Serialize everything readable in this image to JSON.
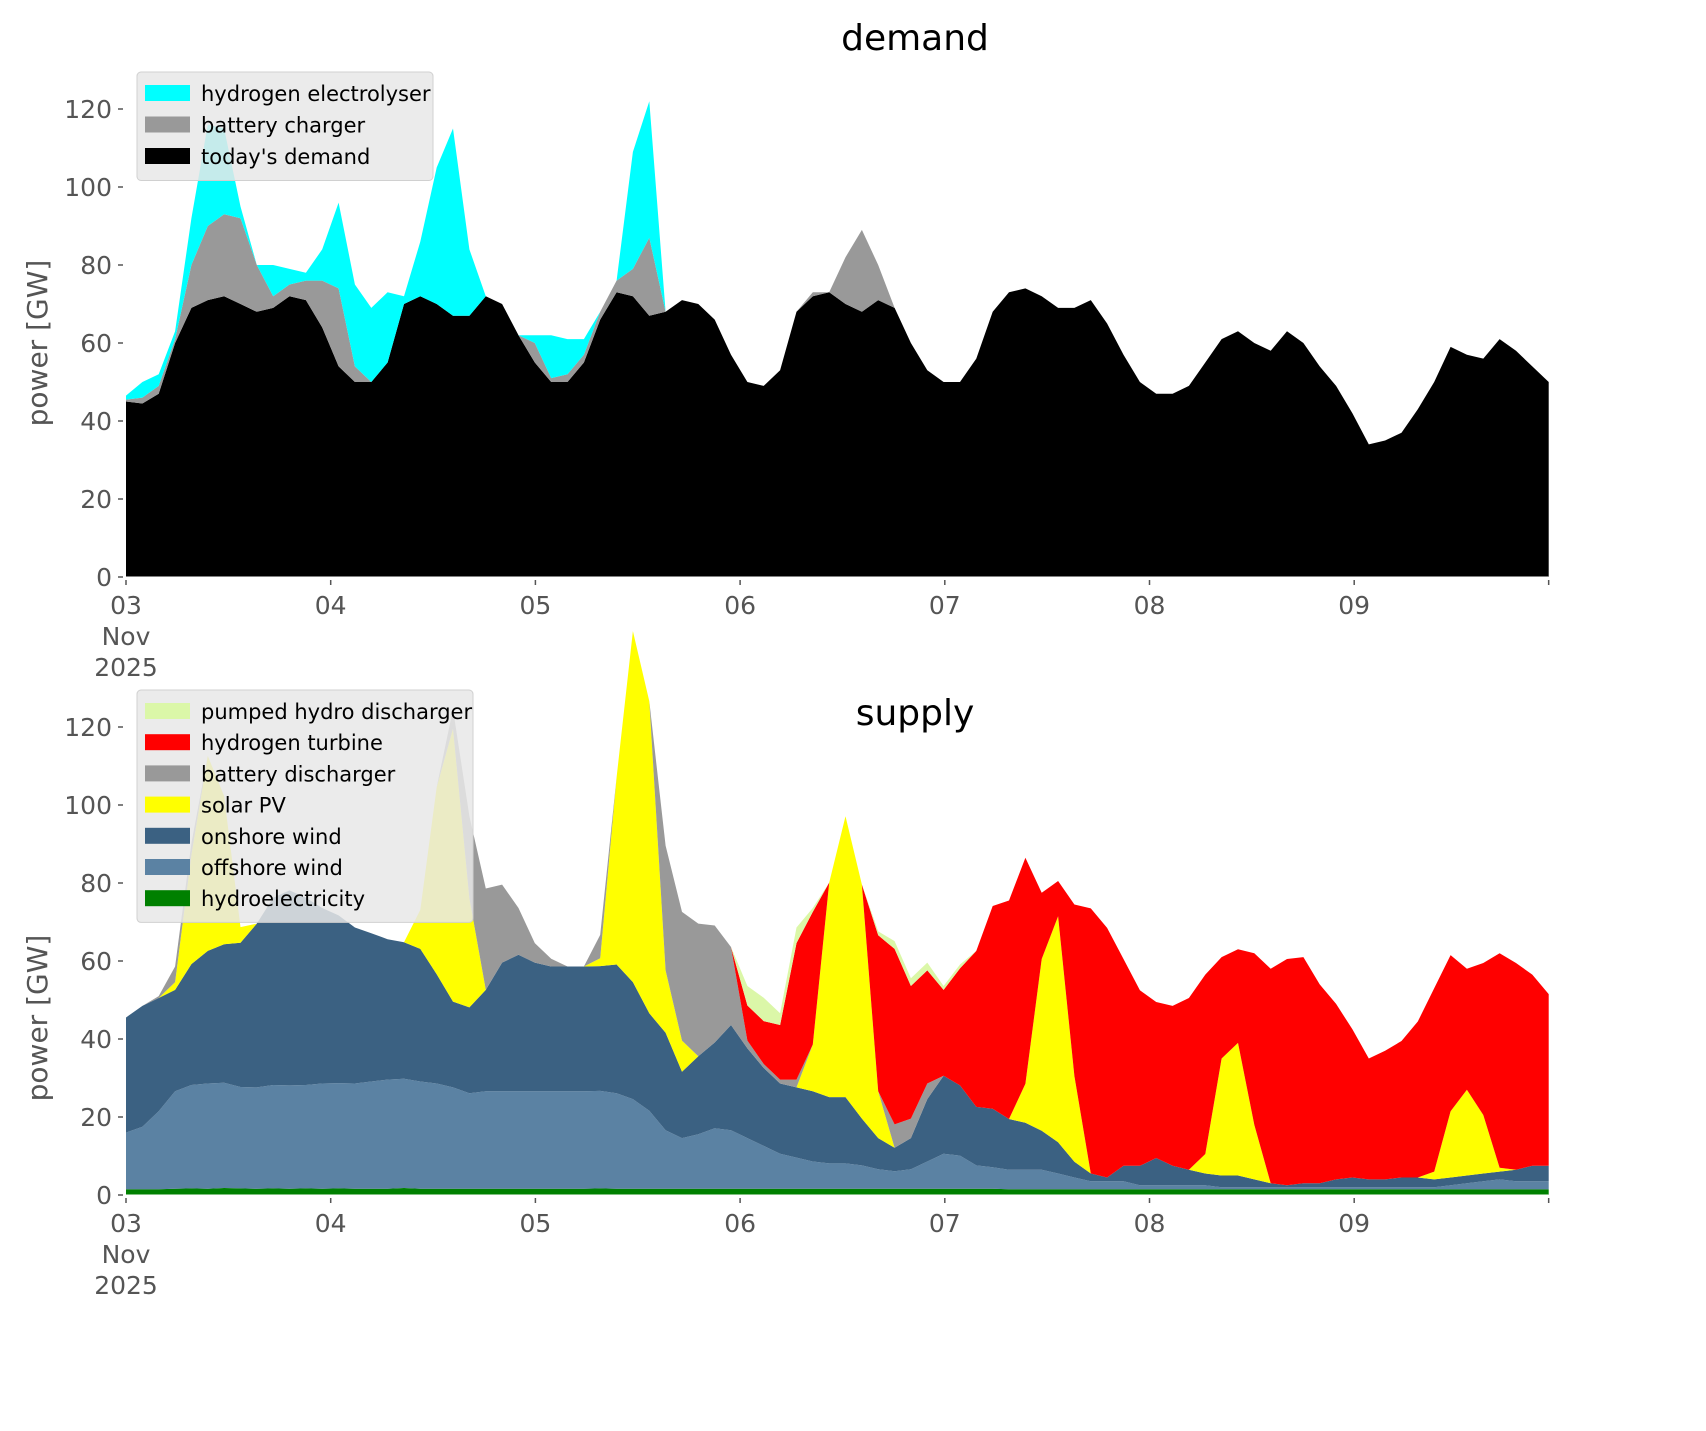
{
  "chart_data": [
    {
      "type": "area",
      "stacked": true,
      "title": "demand",
      "xlabel": "",
      "ylabel": "power [GW]",
      "ylim": [
        0,
        130
      ],
      "yticks": [
        0,
        20,
        40,
        60,
        80,
        100,
        120
      ],
      "xticks": [
        {
          "label": [
            "03",
            "Nov",
            "2025"
          ],
          "day": 0
        },
        {
          "label": [
            "04"
          ],
          "day": 1
        },
        {
          "label": [
            "05"
          ],
          "day": 2
        },
        {
          "label": [
            "06"
          ],
          "day": 3
        },
        {
          "label": [
            "07"
          ],
          "day": 4
        },
        {
          "label": [
            "08"
          ],
          "day": 5
        },
        {
          "label": [
            "09"
          ],
          "day": 6
        }
      ],
      "x_step_hours": 3,
      "x_start": "2025-11-03 00:00",
      "x_end_day": 6.95,
      "legend": "top-left",
      "series": [
        {
          "name": "today's demand",
          "color": "#000000",
          "values": [
            45,
            44.5,
            47,
            60,
            69,
            71,
            72,
            70,
            68,
            69,
            72,
            71,
            64,
            54,
            50,
            50,
            55,
            70,
            72,
            70,
            67,
            67,
            72,
            70,
            62,
            55,
            50,
            50,
            55,
            66,
            73,
            72,
            67,
            68,
            71,
            70,
            66,
            57,
            50,
            49,
            53,
            68,
            72,
            73,
            70,
            68,
            71,
            69,
            60,
            53,
            50,
            50,
            56,
            68,
            73,
            74,
            72,
            69,
            69,
            71,
            65,
            57,
            50,
            47,
            47,
            49,
            55,
            61,
            63,
            60,
            58,
            63,
            60,
            54,
            49,
            42,
            34,
            35,
            37,
            43,
            50,
            59,
            57,
            56,
            61,
            58,
            54,
            50
          ]
        },
        {
          "name": "battery charger",
          "color": "#999999",
          "values": [
            0.5,
            1.5,
            2,
            1,
            11,
            19,
            21,
            22,
            12,
            3,
            3,
            5,
            12,
            20,
            4,
            0,
            0,
            0,
            0,
            0,
            0,
            0,
            0,
            0,
            0,
            5,
            1,
            2,
            2,
            2,
            3,
            7,
            20,
            0,
            0,
            0,
            0,
            0,
            0,
            0,
            0,
            0,
            1,
            0,
            12,
            21,
            9,
            0,
            0,
            0,
            0,
            0,
            0,
            0,
            0,
            0,
            0,
            0,
            0,
            0,
            0,
            0,
            0,
            0,
            0,
            0,
            0,
            0,
            0,
            0,
            0,
            0,
            0,
            0,
            0,
            0,
            0,
            0,
            0,
            0,
            0,
            0,
            0,
            0,
            0,
            0,
            0,
            0
          ]
        },
        {
          "name": "hydrogen electrolyser",
          "color": "#00ffff",
          "values": [
            1,
            4,
            3,
            2,
            12,
            26,
            22,
            3,
            0,
            8,
            4,
            2,
            8,
            22,
            21,
            19,
            18,
            2,
            14,
            35,
            48,
            17,
            0,
            0,
            0,
            2,
            11,
            9,
            4,
            0,
            0,
            30,
            35,
            0,
            0,
            0,
            0,
            0,
            0,
            0,
            0,
            0,
            0,
            0,
            0,
            0,
            0,
            0,
            0,
            0,
            0,
            0,
            0,
            0,
            0,
            0,
            0,
            0,
            0,
            0,
            0,
            0,
            0,
            0,
            0,
            0,
            0,
            0,
            0,
            0,
            0,
            0,
            0,
            0,
            0,
            0,
            0,
            0,
            0,
            0,
            0,
            0,
            0,
            0,
            0,
            0,
            0,
            0
          ]
        }
      ]
    },
    {
      "type": "area",
      "stacked": true,
      "title": "supply",
      "xlabel": "",
      "ylabel": "power [GW]",
      "ylim": [
        0,
        130
      ],
      "yticks": [
        0,
        20,
        40,
        60,
        80,
        100,
        120
      ],
      "xticks": [
        {
          "label": [
            "03",
            "Nov",
            "2025"
          ],
          "day": 0
        },
        {
          "label": [
            "04"
          ],
          "day": 1
        },
        {
          "label": [
            "05"
          ],
          "day": 2
        },
        {
          "label": [
            "06"
          ],
          "day": 3
        },
        {
          "label": [
            "07"
          ],
          "day": 4
        },
        {
          "label": [
            "08"
          ],
          "day": 5
        },
        {
          "label": [
            "09"
          ],
          "day": 6
        }
      ],
      "x_step_hours": 3,
      "x_start": "2025-11-03 00:00",
      "x_end_day": 6.95,
      "legend": "top-left",
      "series": [
        {
          "name": "hydroelectricity",
          "color": "#008000",
          "values": [
            1.5,
            1.5,
            1.5,
            1.6,
            1.7,
            1.6,
            1.8,
            1.7,
            1.6,
            1.7,
            1.6,
            1.7,
            1.6,
            1.7,
            1.6,
            1.6,
            1.6,
            1.8,
            1.6,
            1.6,
            1.6,
            1.6,
            1.6,
            1.6,
            1.6,
            1.6,
            1.6,
            1.6,
            1.6,
            1.7,
            1.6,
            1.6,
            1.6,
            1.6,
            1.6,
            1.6,
            1.6,
            1.6,
            1.6,
            1.6,
            1.6,
            1.6,
            1.6,
            1.6,
            1.6,
            1.6,
            1.6,
            1.6,
            1.6,
            1.6,
            1.6,
            1.6,
            1.6,
            1.6,
            1.5,
            1.5,
            1.5,
            1.5,
            1.5,
            1.5,
            1.5,
            1.5,
            1.5,
            1.5,
            1.5,
            1.5,
            1.5,
            1.5,
            1.5,
            1.5,
            1.5,
            1.5,
            1.5,
            1.5,
            1.5,
            1.5,
            1.5,
            1.5,
            1.5,
            1.5,
            1.5,
            1.5,
            1.5,
            1.5,
            1.5,
            1.5,
            1.5,
            1.5
          ]
        },
        {
          "name": "offshore wind",
          "color": "#5b82a3",
          "values": [
            14.5,
            16,
            20,
            25,
            26.5,
            27,
            27,
            26,
            26,
            26.5,
            26.5,
            26.5,
            27,
            27,
            27,
            27.5,
            28,
            28,
            27.5,
            27,
            26,
            24.5,
            25,
            25,
            25,
            25,
            25,
            25,
            25,
            25,
            24.5,
            23,
            20,
            15,
            13,
            14,
            15.5,
            15,
            13,
            11,
            9,
            8,
            7,
            6.5,
            6.5,
            6,
            5,
            4.5,
            5,
            7,
            9,
            8.5,
            6,
            5.5,
            5,
            5,
            5,
            4,
            3,
            2,
            2,
            2,
            1,
            1,
            1,
            1,
            1,
            0.5,
            0.5,
            0.5,
            0.5,
            0.5,
            0.5,
            0.5,
            0.5,
            0.5,
            0.5,
            0.5,
            0.5,
            0.5,
            0.5,
            1,
            1.5,
            2,
            2.5,
            2,
            2,
            2
          ]
        },
        {
          "name": "onshore wind",
          "color": "#3b6182",
          "values": [
            29.5,
            31,
            29,
            26,
            31,
            34,
            35.5,
            37,
            42,
            48,
            50,
            48,
            45,
            43,
            40,
            38,
            36,
            35,
            34,
            28,
            22,
            22,
            26,
            33,
            35,
            33,
            32,
            32,
            32,
            32,
            33,
            30,
            25,
            25,
            17,
            20,
            22,
            27,
            23,
            20,
            18,
            18,
            18,
            17,
            17,
            12,
            8,
            6,
            8,
            16,
            20,
            18,
            15,
            15,
            13,
            12,
            10,
            8,
            4,
            2,
            1,
            4,
            5,
            7,
            5,
            4,
            3,
            3,
            3,
            2,
            1,
            0.5,
            1,
            1,
            2,
            2.5,
            2,
            2,
            2.5,
            2.5,
            2,
            2,
            2,
            2,
            2,
            3,
            4,
            4
          ]
        },
        {
          "name": "solar PV",
          "color": "#ffff00",
          "values": [
            0,
            0,
            0,
            2,
            28,
            50,
            38,
            4,
            0,
            0,
            0,
            0,
            0,
            0,
            0,
            0,
            0,
            0,
            10,
            48,
            70,
            28,
            0,
            0,
            0,
            0,
            0,
            0,
            0,
            2,
            48,
            90,
            80,
            16,
            8,
            0,
            0,
            0,
            0,
            0,
            0,
            0,
            12,
            55,
            72,
            60,
            12,
            0,
            0,
            0,
            0,
            0,
            0,
            0,
            0,
            10,
            44,
            58,
            22,
            0,
            0,
            0,
            0,
            0,
            0,
            0,
            5,
            30,
            34,
            14,
            0,
            0,
            0,
            0,
            0,
            0,
            0,
            0,
            0,
            0,
            2,
            17,
            22,
            15,
            1,
            0,
            0,
            0
          ]
        },
        {
          "name": "battery discharger",
          "color": "#999999",
          "values": [
            0,
            0,
            0.5,
            4,
            3,
            0,
            0,
            0,
            0,
            0,
            0,
            0,
            0,
            0,
            0,
            0,
            0,
            0,
            0,
            0,
            5,
            21,
            26,
            20,
            12,
            5,
            2,
            0,
            0,
            6,
            0,
            0,
            0,
            32,
            33,
            34,
            30,
            20,
            2,
            1,
            1,
            2,
            0,
            0,
            0,
            0,
            0,
            6,
            5,
            4,
            0,
            0,
            0,
            0,
            0,
            0,
            0,
            0,
            0,
            0,
            0,
            0,
            0,
            0,
            0,
            0,
            0,
            0,
            0,
            0,
            0,
            0,
            0,
            0,
            0,
            0,
            0,
            0,
            0,
            0,
            0,
            0,
            0,
            0,
            0,
            0,
            0,
            0
          ]
        },
        {
          "name": "hydrogen turbine",
          "color": "#ff0000",
          "values": [
            0,
            0,
            0,
            0,
            0,
            0,
            0,
            0,
            0,
            0,
            0,
            0,
            0,
            0,
            0,
            0,
            0,
            0,
            0,
            0,
            0,
            0,
            0,
            0,
            0,
            0,
            0,
            0,
            0,
            0,
            0,
            0,
            0,
            0,
            0,
            0,
            0,
            0,
            9,
            11,
            14,
            35,
            34,
            0,
            0,
            0,
            40,
            45,
            34,
            29,
            22,
            30,
            40,
            52,
            56,
            58,
            17,
            9,
            44,
            68,
            64,
            53,
            45,
            40,
            41,
            44,
            46,
            26,
            24,
            44,
            55,
            58,
            58,
            51,
            45,
            38,
            31,
            33,
            35,
            40,
            47,
            40,
            31,
            39,
            55,
            53,
            49,
            44
          ]
        },
        {
          "name": "pumped hydro discharger",
          "color": "#dbf7a8",
          "values": [
            0,
            0,
            0,
            0,
            0,
            0,
            0,
            0,
            0,
            0,
            0,
            0,
            0,
            0,
            0,
            0,
            0,
            0,
            0,
            0,
            0,
            0,
            0,
            0,
            0,
            0,
            0,
            0,
            0,
            0,
            0,
            0,
            0,
            0,
            0,
            0,
            0,
            0,
            5,
            6,
            3,
            4,
            1,
            0,
            0,
            0,
            1,
            2,
            2,
            2,
            1,
            1,
            0,
            0,
            0,
            0,
            0,
            0,
            0,
            0,
            0,
            0,
            0,
            0,
            0,
            0,
            0,
            0,
            0,
            0,
            0,
            0,
            0,
            0,
            0,
            0,
            0,
            0,
            0,
            0,
            0,
            0,
            0,
            0,
            0,
            0,
            0,
            0
          ]
        }
      ]
    }
  ]
}
